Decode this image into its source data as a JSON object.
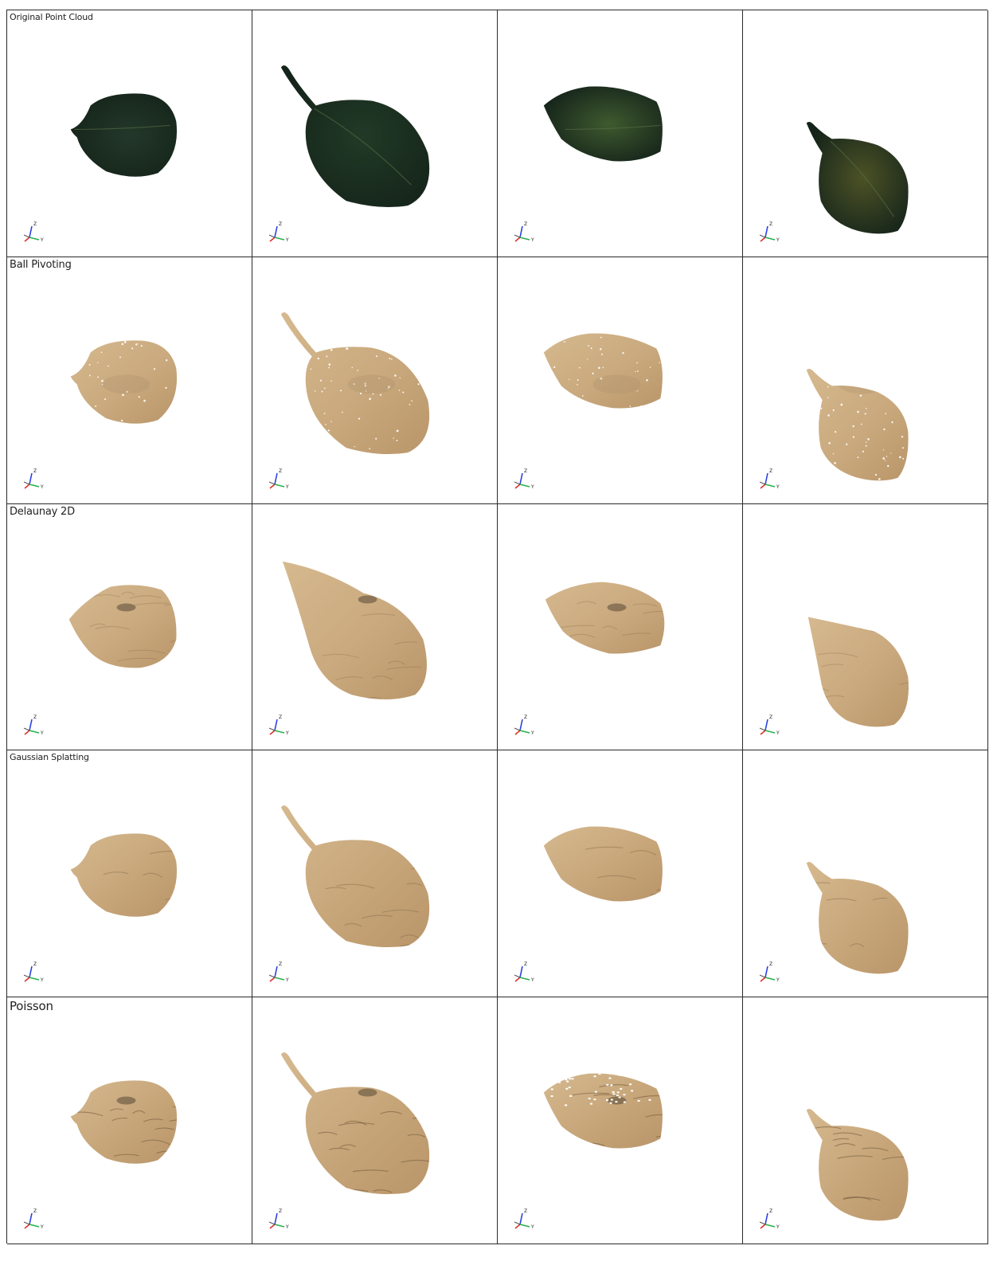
{
  "figure": {
    "rows": [
      {
        "label": "Original Point Cloud",
        "render": "point-cloud",
        "colors": [
          "#23382a",
          "#213a26",
          "#3f5a2f",
          "#4c5226"
        ]
      },
      {
        "label": "Ball Pivoting",
        "render": "mesh-holes",
        "colors": [
          "#c9a97d",
          "#c9a97d",
          "#c9a97d",
          "#c9a97d"
        ]
      },
      {
        "label": "Delaunay 2D",
        "render": "mesh-smooth",
        "colors": [
          "#caa97e",
          "#caa97e",
          "#caa97e",
          "#caa97e"
        ]
      },
      {
        "label": "Gaussian Splatting",
        "render": "mesh-ridged",
        "colors": [
          "#c7a67a",
          "#c7a67a",
          "#c7a67a",
          "#c7a67a"
        ]
      },
      {
        "label": "Poisson",
        "render": "mesh-wrinkled",
        "colors": [
          "#c6a579",
          "#c6a579",
          "#c6a579",
          "#c6a579"
        ]
      }
    ],
    "axes_icon": {
      "z_label": "Z",
      "y_label": "Y",
      "x_color": "#e0312b",
      "y_color": "#27b14a",
      "z_color": "#2b41e0"
    },
    "grid_line_color": "#2a2a2a"
  }
}
